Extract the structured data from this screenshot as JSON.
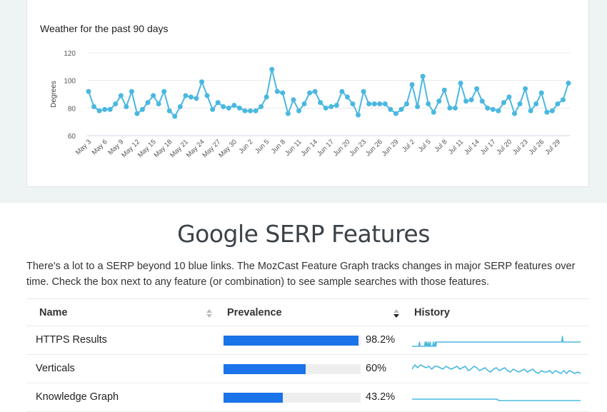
{
  "chart_data": {
    "type": "line",
    "title": "Weather for the past 90 days",
    "ylabel": "Degrees",
    "ylim": [
      60,
      120
    ],
    "yticks": [
      60,
      80,
      100,
      120
    ],
    "grid": true,
    "x_tick_labels": [
      "May 3",
      "May 6",
      "May 9",
      "May 12",
      "May 15",
      "May 18",
      "May 21",
      "May 24",
      "May 27",
      "May 30",
      "Jun 2",
      "Jun 5",
      "Jun 8",
      "Jun 11",
      "Jun 14",
      "Jun 17",
      "Jun 20",
      "Jun 23",
      "Jun 26",
      "Jun 29",
      "Jul 2",
      "Jul 5",
      "Jul 8",
      "Jul 11",
      "Jul 14",
      "Jul 17",
      "Jul 20",
      "Jul 23",
      "Jul 26",
      "Jul 29"
    ],
    "color": "#4ab8e0",
    "values": [
      92,
      81,
      78,
      79,
      79,
      83,
      89,
      81,
      92,
      76,
      79,
      84,
      89,
      83,
      92,
      78,
      74,
      81,
      89,
      88,
      87,
      99,
      89,
      79,
      84,
      81,
      80,
      82,
      80,
      78,
      78,
      78,
      81,
      88,
      108,
      92,
      91,
      76,
      86,
      78,
      83,
      91,
      92,
      84,
      80,
      81,
      82,
      92,
      88,
      83,
      75,
      92,
      83,
      83,
      83,
      83,
      79,
      76,
      79,
      83,
      97,
      81,
      103,
      83,
      77,
      85,
      93,
      80,
      80,
      98,
      85,
      86,
      94,
      85,
      80,
      79,
      78,
      84,
      88,
      76,
      83,
      94,
      78,
      83,
      91,
      77,
      78,
      83,
      86,
      98
    ]
  },
  "serp": {
    "title": "Google SERP Features",
    "intro": "There's a lot to a SERP beyond 10 blue links. The MozCast Feature Graph tracks changes in major SERP features over time. Check the box next to any feature (or combination) to see sample searches with those features.",
    "columns": {
      "name": "Name",
      "prevalence": "Prevalence",
      "history": "History"
    },
    "bar_color": "#1a73e8",
    "history_color": "#4ab8e0",
    "rows": [
      {
        "name": "HTTPS Results",
        "prevalence": 98.2,
        "label": "98.2%",
        "history": [
          2,
          2,
          2,
          2,
          2,
          2,
          2,
          2,
          2,
          2,
          2,
          2,
          5,
          2,
          2,
          2,
          2,
          2,
          2,
          2,
          2,
          5,
          2,
          5,
          2,
          2,
          5,
          2,
          2,
          5,
          2,
          2,
          2,
          2,
          5,
          2,
          2,
          5,
          2,
          5,
          5,
          5,
          5,
          5,
          5,
          5,
          5,
          5,
          5,
          5,
          5,
          5,
          5,
          5,
          5,
          5,
          5,
          5,
          5,
          5,
          5,
          5,
          5,
          5,
          5,
          5,
          5,
          5,
          5,
          5,
          5,
          5,
          5,
          5,
          5,
          5,
          5,
          5,
          5,
          5,
          5,
          5,
          5,
          5,
          5,
          5,
          5,
          5,
          5,
          5,
          5,
          5,
          5,
          5,
          5,
          5,
          5,
          5,
          5,
          5,
          5,
          5,
          5,
          5,
          5,
          5,
          5,
          5,
          5,
          5,
          5,
          5,
          5,
          5,
          5,
          5,
          5,
          5,
          5,
          5,
          5,
          5,
          5,
          5,
          5,
          5,
          5,
          5,
          5,
          5,
          5,
          5,
          5,
          5,
          5,
          5,
          5,
          5,
          5,
          5,
          5,
          5,
          5,
          5,
          5,
          5,
          5,
          5,
          5,
          5,
          5,
          5,
          5,
          5,
          5,
          5,
          5,
          5,
          5,
          5,
          5,
          5,
          5,
          5,
          5,
          5,
          5,
          5,
          5,
          5,
          5,
          5,
          5,
          5,
          5,
          5,
          5,
          5,
          5,
          5,
          5,
          5,
          5,
          5,
          5,
          5,
          5,
          5,
          5,
          5,
          5,
          5,
          5,
          5,
          5,
          5,
          5,
          5,
          5,
          5,
          5,
          5,
          5,
          5,
          5,
          5,
          5,
          5,
          5,
          5,
          5,
          5,
          5,
          5,
          5,
          5,
          5,
          5,
          5,
          5,
          5,
          5,
          5,
          5,
          5,
          5,
          5,
          5,
          5,
          5,
          5,
          5,
          5,
          5,
          5,
          5,
          5,
          5,
          5,
          5,
          9,
          5,
          5,
          5,
          5,
          5,
          5,
          5,
          5,
          5,
          5,
          5,
          5,
          5,
          5,
          5,
          5,
          5,
          5,
          5,
          5,
          5,
          5,
          5,
          5,
          5,
          5,
          5,
          5,
          5
        ]
      },
      {
        "name": "Verticals",
        "prevalence": 60,
        "label": "60%",
        "history": [
          6,
          9,
          7,
          9,
          8,
          7,
          8,
          6,
          8,
          8,
          7,
          6,
          8,
          7,
          6,
          7,
          8,
          6,
          7,
          8,
          5,
          6,
          8,
          7,
          5,
          6,
          7,
          5,
          4,
          6,
          7,
          5,
          6,
          7,
          5,
          4,
          6,
          5,
          4,
          5,
          6,
          4,
          5,
          6,
          4,
          3,
          5,
          4,
          4,
          5,
          3,
          5,
          4,
          3,
          5,
          3,
          5,
          4,
          3,
          4,
          3
        ]
      },
      {
        "name": "Knowledge Graph",
        "prevalence": 43.2,
        "label": "43.2%",
        "history": [
          5,
          5,
          5,
          5,
          5,
          5,
          5,
          5,
          5,
          5,
          5,
          5,
          5,
          5,
          5,
          5,
          5,
          5,
          5,
          5,
          5,
          5,
          5,
          5,
          5,
          5,
          5,
          5,
          5,
          5,
          5,
          4,
          4,
          4,
          4,
          4,
          4,
          4,
          4,
          4,
          4,
          4,
          4,
          4,
          4,
          4,
          4,
          4,
          4,
          4,
          4,
          4,
          4,
          4,
          4,
          4,
          4,
          4,
          4,
          4,
          4
        ]
      }
    ]
  }
}
